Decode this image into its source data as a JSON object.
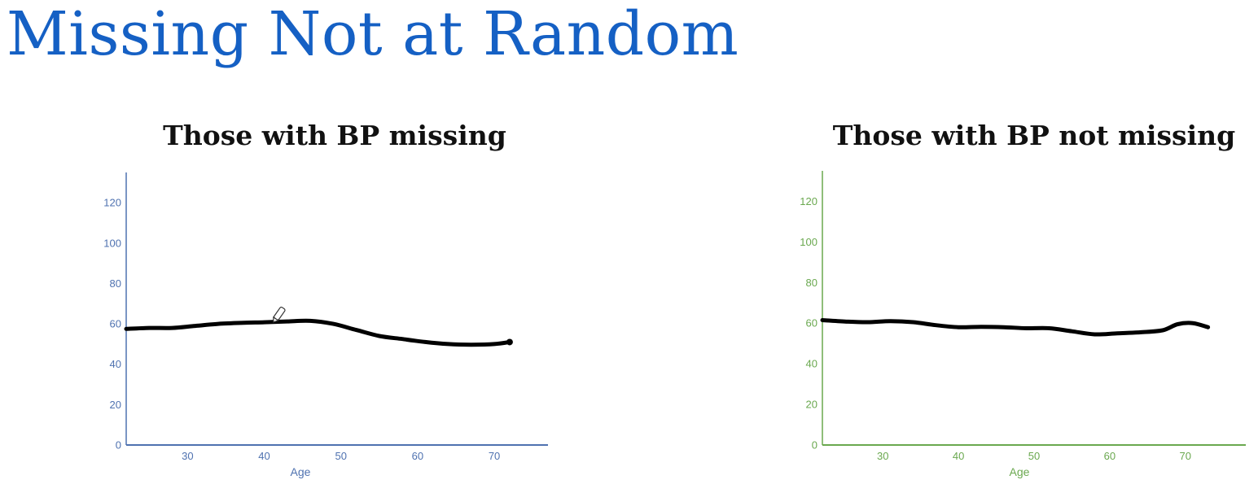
{
  "slide": {
    "title": "Missing Not at Random"
  },
  "colors": {
    "title": "#1560c4",
    "chart_left_axis": "#4f72b0",
    "chart_right_axis": "#6aa84f",
    "curve": "#000000"
  },
  "icons": {
    "cursor": "pencil-icon"
  },
  "chart_data": [
    {
      "type": "line",
      "title": "Those with BP missing",
      "xlabel": "Age",
      "ylabel": "",
      "xlim": [
        22,
        77
      ],
      "ylim": [
        0,
        135
      ],
      "xticks": [
        30,
        40,
        50,
        60,
        70
      ],
      "yticks": [
        0,
        20,
        40,
        60,
        80,
        100,
        120
      ],
      "grid": false,
      "axis_color": "#4f72b0",
      "series": [
        {
          "x": [
            22,
            25,
            28,
            31,
            34,
            37,
            40,
            43,
            46,
            49,
            52,
            55,
            58,
            61,
            64,
            67,
            70,
            72
          ],
          "y": [
            57.5,
            58,
            58,
            59,
            60,
            60.5,
            60.8,
            61.2,
            61.5,
            60,
            57,
            54,
            52.5,
            51,
            50,
            49.7,
            50,
            51
          ]
        }
      ]
    },
    {
      "type": "line",
      "title": "Those with BP not missing",
      "xlabel": "Age",
      "ylabel": "",
      "xlim": [
        22,
        78
      ],
      "ylim": [
        0,
        135
      ],
      "xticks": [
        30,
        40,
        50,
        60,
        70
      ],
      "yticks": [
        0,
        20,
        40,
        60,
        80,
        100,
        120
      ],
      "grid": false,
      "axis_color": "#6aa84f",
      "series": [
        {
          "x": [
            22,
            25,
            28,
            31,
            34,
            37,
            40,
            43,
            46,
            49,
            52,
            55,
            58,
            61,
            64,
            67,
            69,
            71,
            73
          ],
          "y": [
            61.5,
            60.8,
            60.5,
            61,
            60.5,
            59,
            58,
            58.2,
            58,
            57.5,
            57.5,
            56,
            54.5,
            55,
            55.5,
            56.5,
            59.5,
            60,
            58
          ]
        }
      ]
    }
  ]
}
